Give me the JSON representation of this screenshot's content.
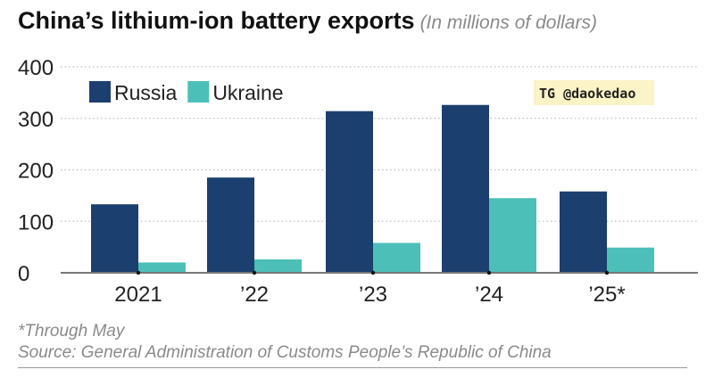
{
  "chart_data": {
    "type": "bar",
    "title": "China’s lithium-ion battery exports",
    "subtitle": "(In millions of dollars)",
    "categories": [
      "2021",
      "’22",
      "’23",
      "’24",
      "’25*"
    ],
    "series": [
      {
        "name": "Russia",
        "color": "#1b3f6e",
        "values": [
          133,
          185,
          314,
          326,
          158
        ]
      },
      {
        "name": "Ukraine",
        "color": "#4cbfb8",
        "values": [
          20,
          26,
          58,
          145,
          49
        ]
      }
    ],
    "ylim": [
      0,
      400
    ],
    "yticks": [
      0,
      100,
      200,
      300,
      400
    ],
    "grid": true,
    "legend": "top-left"
  },
  "watermark": "TG @daokedao",
  "footnote": "*Through May",
  "source": "Source: General Administration of Customs People’s Republic of China"
}
